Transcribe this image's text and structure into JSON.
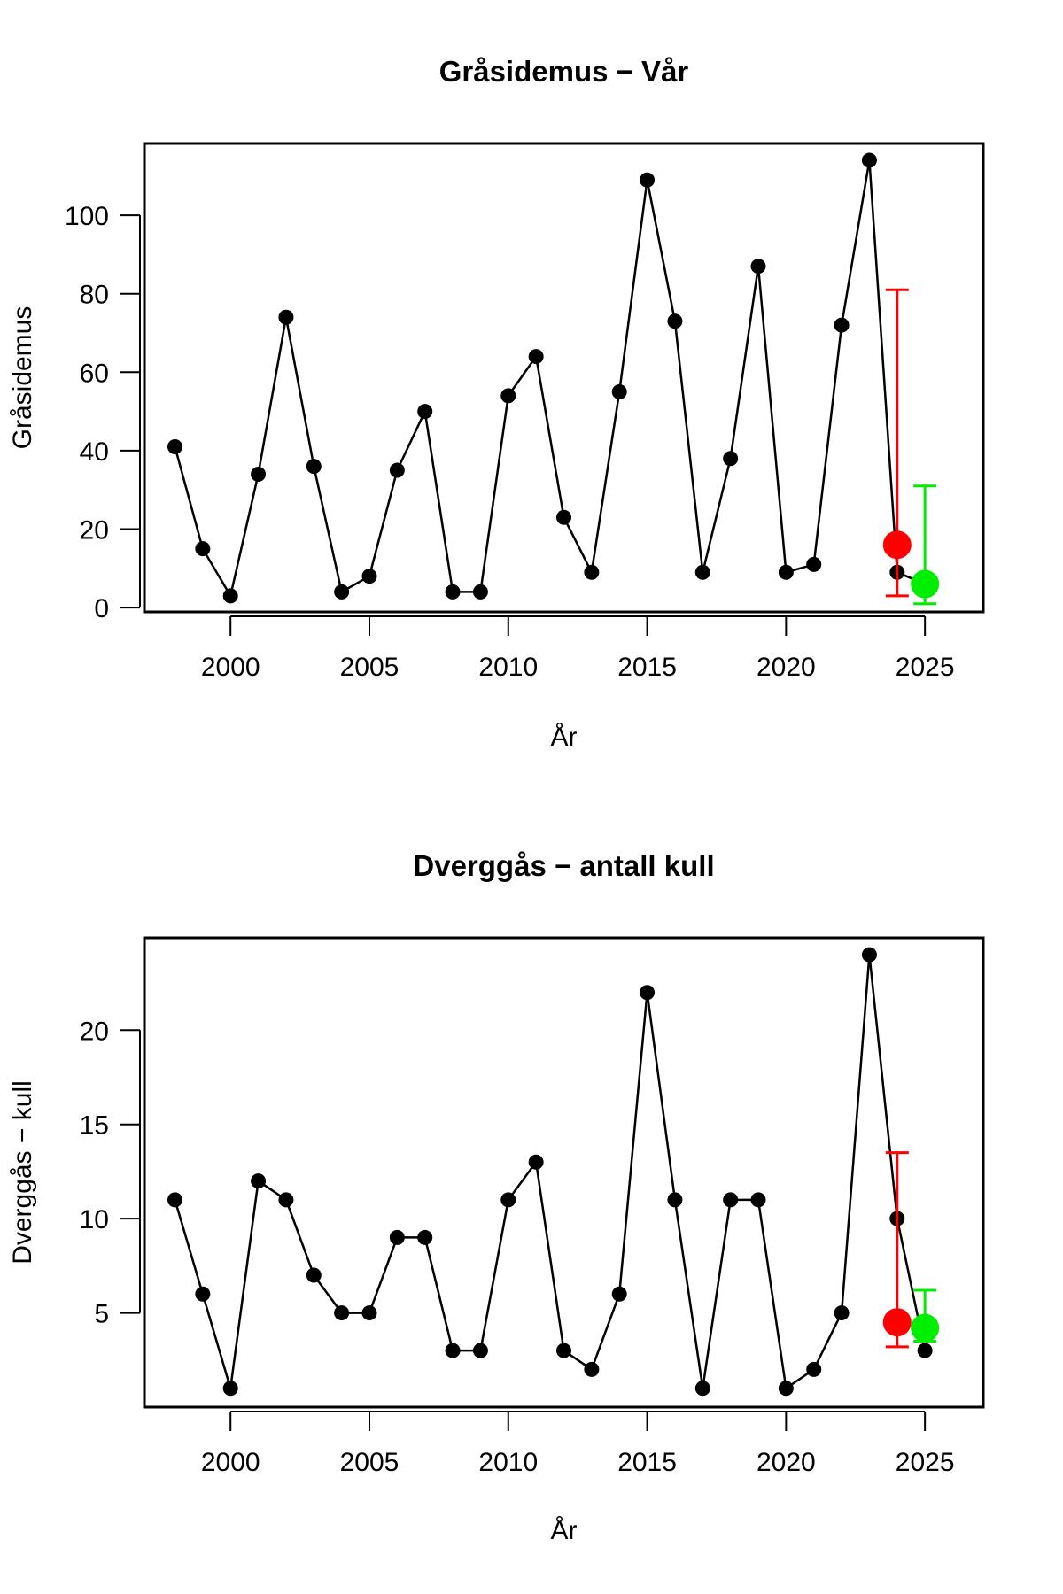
{
  "chart_data": [
    {
      "type": "line",
      "title": "Gråsidemus − Vår",
      "xlabel": "År",
      "ylabel": "Gråsidemus",
      "xlim": [
        1996.9,
        2027.1
      ],
      "ylim": [
        -1.1,
        118.3
      ],
      "xticks": [
        2000,
        2005,
        2010,
        2015,
        2020,
        2025
      ],
      "yticks": [
        0,
        20,
        40,
        60,
        80,
        100
      ],
      "x": [
        1998,
        1999,
        2000,
        2001,
        2002,
        2003,
        2004,
        2005,
        2006,
        2007,
        2008,
        2009,
        2010,
        2011,
        2012,
        2013,
        2014,
        2015,
        2016,
        2017,
        2018,
        2019,
        2020,
        2021,
        2022,
        2023,
        2024,
        2025
      ],
      "values": [
        41,
        15,
        3,
        34,
        74,
        36,
        4,
        8,
        35,
        50,
        4,
        4,
        54,
        64,
        23,
        9,
        55,
        109,
        73,
        9,
        38,
        87,
        9,
        11,
        72,
        114,
        9,
        6
      ],
      "predictions": [
        {
          "x": 2024,
          "value": 16,
          "lower": 3,
          "upper": 81,
          "color": "#ff0000"
        },
        {
          "x": 2025,
          "value": 6,
          "lower": 1,
          "upper": 31,
          "color": "#00ee00"
        }
      ]
    },
    {
      "type": "line",
      "title": "Dverggås − antall kull",
      "xlabel": "År",
      "ylabel": "Dverggås − kull",
      "xlim": [
        1996.9,
        2027.1
      ],
      "ylim": [
        0,
        24.9
      ],
      "xticks": [
        2000,
        2005,
        2010,
        2015,
        2020,
        2025
      ],
      "yticks": [
        5,
        10,
        15,
        20
      ],
      "x": [
        1998,
        1999,
        2000,
        2001,
        2002,
        2003,
        2004,
        2005,
        2006,
        2007,
        2008,
        2009,
        2010,
        2011,
        2012,
        2013,
        2014,
        2015,
        2016,
        2017,
        2018,
        2019,
        2020,
        2021,
        2022,
        2023,
        2024,
        2025
      ],
      "values": [
        11,
        6,
        1,
        12,
        11,
        7,
        5,
        5,
        9,
        9,
        3,
        3,
        11,
        13,
        3,
        2,
        6,
        22,
        11,
        1,
        11,
        11,
        1,
        2,
        5,
        24,
        10,
        3
      ],
      "predictions": [
        {
          "x": 2024,
          "value": 4.5,
          "lower": 3.2,
          "upper": 13.5,
          "color": "#ff0000"
        },
        {
          "x": 2025,
          "value": 4.2,
          "lower": 3.5,
          "upper": 6.2,
          "color": "#00ee00"
        }
      ]
    }
  ]
}
